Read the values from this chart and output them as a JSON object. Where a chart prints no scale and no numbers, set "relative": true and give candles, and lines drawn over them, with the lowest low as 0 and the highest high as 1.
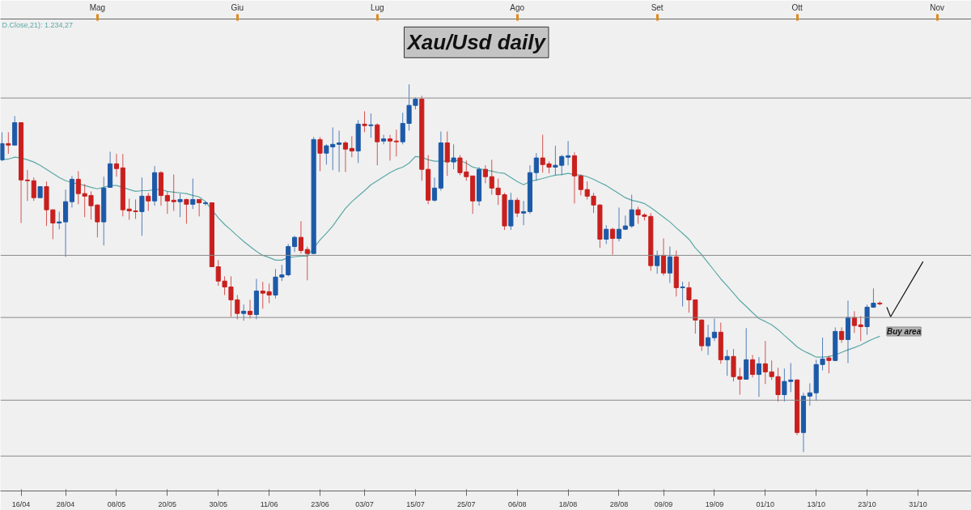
{
  "chart_data": {
    "type": "candlestick",
    "title": "Xau/Usd daily",
    "relative": true,
    "categories": [
      null,
      null,
      null,
      "16/04",
      null,
      null,
      null,
      null,
      null,
      null,
      "28/04",
      null,
      null,
      null,
      null,
      null,
      null,
      null,
      "08/05",
      null,
      null,
      null,
      null,
      null,
      null,
      null,
      "20/05",
      null,
      null,
      null,
      null,
      null,
      null,
      null,
      "30/05",
      null,
      null,
      null,
      null,
      null,
      null,
      null,
      "11/06",
      null,
      null,
      null,
      null,
      null,
      null,
      null,
      "23/06",
      null,
      null,
      null,
      null,
      null,
      null,
      "03/07",
      null,
      null,
      null,
      null,
      null,
      null,
      null,
      "15/07",
      null,
      null,
      null,
      null,
      null,
      null,
      null,
      "25/07",
      null,
      null,
      null,
      null,
      null,
      null,
      null,
      "06/08",
      null,
      null,
      null,
      null,
      null,
      null,
      null,
      "18/08",
      null,
      null,
      null,
      null,
      null,
      null,
      null,
      "28/08",
      null,
      null,
      null,
      null,
      null,
      null,
      "09/09",
      null,
      null,
      null,
      null,
      null,
      null,
      null,
      "19/09",
      null,
      null,
      null,
      null,
      null,
      null,
      null,
      "01/10",
      null,
      null,
      null,
      null,
      null,
      null,
      null,
      "13/10",
      null,
      null,
      null,
      null,
      null,
      null,
      null,
      "23/10",
      null,
      null,
      null,
      null,
      null,
      null,
      null,
      "31/10",
      null,
      null,
      null,
      null,
      null,
      null,
      null
    ],
    "ohlc": [
      [
        0.795,
        0.87,
        0.791,
        0.839
      ],
      [
        0.839,
        0.87,
        0.811,
        0.835
      ],
      [
        0.835,
        0.914,
        0.835,
        0.896
      ],
      [
        0.896,
        0.896,
        0.623,
        0.74
      ],
      [
        0.74,
        0.767,
        0.683,
        0.738
      ],
      [
        0.738,
        0.747,
        0.683,
        0.692
      ],
      [
        0.692,
        0.722,
        0.692,
        0.722
      ],
      [
        0.722,
        0.736,
        0.615,
        0.659
      ],
      [
        0.659,
        0.659,
        0.579,
        0.623
      ],
      [
        0.623,
        0.654,
        0.606,
        0.626
      ],
      [
        0.626,
        0.714,
        0.531,
        0.681
      ],
      [
        0.681,
        0.751,
        0.665,
        0.742
      ],
      [
        0.742,
        0.764,
        0.674,
        0.703
      ],
      [
        0.703,
        0.729,
        0.639,
        0.696
      ],
      [
        0.698,
        0.709,
        0.632,
        0.67
      ],
      [
        0.672,
        0.674,
        0.584,
        0.626
      ],
      [
        0.626,
        0.749,
        0.562,
        0.718
      ],
      [
        0.72,
        0.817,
        0.72,
        0.784
      ],
      [
        0.784,
        0.811,
        0.749,
        0.771
      ],
      [
        0.773,
        0.811,
        0.641,
        0.659
      ],
      [
        0.661,
        0.689,
        0.632,
        0.656
      ],
      [
        0.656,
        0.687,
        0.634,
        0.654
      ],
      [
        0.654,
        0.747,
        0.588,
        0.696
      ],
      [
        0.696,
        0.705,
        0.656,
        0.683
      ],
      [
        0.683,
        0.778,
        0.67,
        0.76
      ],
      [
        0.76,
        0.764,
        0.67,
        0.698
      ],
      [
        0.698,
        0.709,
        0.648,
        0.683
      ],
      [
        0.685,
        0.755,
        0.656,
        0.681
      ],
      [
        0.681,
        0.703,
        0.639,
        0.687
      ],
      [
        0.687,
        0.689,
        0.621,
        0.674
      ],
      [
        0.674,
        0.744,
        0.661,
        0.687
      ],
      [
        0.687,
        0.687,
        0.641,
        0.678
      ],
      [
        0.676,
        0.683,
        0.67,
        0.678
      ],
      [
        0.678,
        0.678,
        0.504,
        0.504
      ],
      [
        0.504,
        0.522,
        0.452,
        0.465
      ],
      [
        0.465,
        0.478,
        0.427,
        0.449
      ],
      [
        0.449,
        0.478,
        0.368,
        0.414
      ],
      [
        0.414,
        0.427,
        0.361,
        0.377
      ],
      [
        0.377,
        0.401,
        0.357,
        0.383
      ],
      [
        0.383,
        0.414,
        0.363,
        0.374
      ],
      [
        0.374,
        0.471,
        0.361,
        0.438
      ],
      [
        0.438,
        0.463,
        0.39,
        0.432
      ],
      [
        0.436,
        0.458,
        0.405,
        0.427
      ],
      [
        0.427,
        0.498,
        0.418,
        0.476
      ],
      [
        0.476,
        0.509,
        0.465,
        0.482
      ],
      [
        0.482,
        0.566,
        0.478,
        0.559
      ],
      [
        0.559,
        0.588,
        0.544,
        0.584
      ],
      [
        0.584,
        0.628,
        0.54,
        0.548
      ],
      [
        0.551,
        0.559,
        0.467,
        0.54
      ],
      [
        0.54,
        0.857,
        0.54,
        0.85
      ],
      [
        0.85,
        0.857,
        0.764,
        0.813
      ],
      [
        0.813,
        0.837,
        0.782,
        0.833
      ],
      [
        0.83,
        0.883,
        0.767,
        0.837
      ],
      [
        0.837,
        0.874,
        0.762,
        0.841
      ],
      [
        0.841,
        0.846,
        0.762,
        0.824
      ],
      [
        0.826,
        0.859,
        0.802,
        0.819
      ],
      [
        0.819,
        0.903,
        0.786,
        0.892
      ],
      [
        0.892,
        0.927,
        0.87,
        0.888
      ],
      [
        0.888,
        0.921,
        0.855,
        0.89
      ],
      [
        0.89,
        0.894,
        0.78,
        0.844
      ],
      [
        0.846,
        0.863,
        0.837,
        0.852
      ],
      [
        0.852,
        0.863,
        0.793,
        0.846
      ],
      [
        0.846,
        0.877,
        0.804,
        0.844
      ],
      [
        0.844,
        0.923,
        0.837,
        0.894
      ],
      [
        0.894,
        1,
        0.874,
        0.943
      ],
      [
        0.943,
        0.965,
        0.932,
        0.96
      ],
      [
        0.96,
        0.969,
        0.738,
        0.769
      ],
      [
        0.769,
        0.808,
        0.674,
        0.685
      ],
      [
        0.685,
        0.747,
        0.681,
        0.718
      ],
      [
        0.718,
        0.872,
        0.711,
        0.841
      ],
      [
        0.841,
        0.872,
        0.751,
        0.789
      ],
      [
        0.789,
        0.837,
        0.769,
        0.8
      ],
      [
        0.8,
        0.808,
        0.753,
        0.76
      ],
      [
        0.762,
        0.793,
        0.738,
        0.749
      ],
      [
        0.751,
        0.751,
        0.648,
        0.683
      ],
      [
        0.683,
        0.775,
        0.67,
        0.769
      ],
      [
        0.769,
        0.78,
        0.731,
        0.749
      ],
      [
        0.749,
        0.795,
        0.7,
        0.718
      ],
      [
        0.718,
        0.744,
        0.672,
        0.7
      ],
      [
        0.7,
        0.705,
        0.604,
        0.615
      ],
      [
        0.615,
        0.705,
        0.604,
        0.685
      ],
      [
        0.685,
        0.692,
        0.639,
        0.65
      ],
      [
        0.65,
        0.683,
        0.617,
        0.654
      ],
      [
        0.654,
        0.78,
        0.648,
        0.76
      ],
      [
        0.76,
        0.813,
        0.738,
        0.8
      ],
      [
        0.8,
        0.863,
        0.76,
        0.782
      ],
      [
        0.784,
        0.791,
        0.758,
        0.775
      ],
      [
        0.775,
        0.833,
        0.753,
        0.78
      ],
      [
        0.78,
        0.808,
        0.753,
        0.804
      ],
      [
        0.802,
        0.846,
        0.78,
        0.806
      ],
      [
        0.806,
        0.815,
        0.676,
        0.751
      ],
      [
        0.751,
        0.755,
        0.698,
        0.714
      ],
      [
        0.714,
        0.736,
        0.687,
        0.696
      ],
      [
        0.696,
        0.705,
        0.65,
        0.672
      ],
      [
        0.672,
        0.674,
        0.555,
        0.579
      ],
      [
        0.579,
        0.617,
        0.566,
        0.606
      ],
      [
        0.606,
        0.61,
        0.537,
        0.581
      ],
      [
        0.581,
        0.665,
        0.573,
        0.606
      ],
      [
        0.606,
        0.643,
        0.604,
        0.615
      ],
      [
        0.615,
        0.7,
        0.61,
        0.659
      ],
      [
        0.659,
        0.667,
        0.621,
        0.645
      ],
      [
        0.645,
        0.65,
        0.63,
        0.641
      ],
      [
        0.641,
        0.65,
        0.493,
        0.507
      ],
      [
        0.507,
        0.548,
        0.485,
        0.535
      ],
      [
        0.535,
        0.581,
        0.48,
        0.487
      ],
      [
        0.487,
        0.559,
        0.46,
        0.531
      ],
      [
        0.531,
        0.548,
        0.423,
        0.447
      ],
      [
        0.447,
        0.463,
        0.396,
        0.449
      ],
      [
        0.447,
        0.463,
        0.379,
        0.414
      ],
      [
        0.414,
        0.414,
        0.322,
        0.359
      ],
      [
        0.359,
        0.361,
        0.275,
        0.289
      ],
      [
        0.289,
        0.346,
        0.264,
        0.311
      ],
      [
        0.311,
        0.363,
        0.302,
        0.326
      ],
      [
        0.326,
        0.352,
        0.24,
        0.251
      ],
      [
        0.251,
        0.278,
        0.207,
        0.26
      ],
      [
        0.26,
        0.28,
        0.192,
        0.205
      ],
      [
        0.205,
        0.229,
        0.156,
        0.198
      ],
      [
        0.198,
        0.337,
        0.198,
        0.251
      ],
      [
        0.251,
        0.264,
        0.203,
        0.211
      ],
      [
        0.211,
        0.258,
        0.15,
        0.24
      ],
      [
        0.24,
        0.302,
        0.185,
        0.218
      ],
      [
        0.218,
        0.249,
        0.196,
        0.205
      ],
      [
        0.205,
        0.229,
        0.137,
        0.156
      ],
      [
        0.156,
        0.227,
        0.137,
        0.192
      ],
      [
        0.192,
        0.242,
        0.163,
        0.196
      ],
      [
        0.196,
        0.198,
        0.046,
        0.053
      ],
      [
        0.053,
        0.161,
        0,
        0.152
      ],
      [
        0.152,
        0.187,
        0.126,
        0.161
      ],
      [
        0.161,
        0.251,
        0.139,
        0.238
      ],
      [
        0.238,
        0.311,
        0.222,
        0.253
      ],
      [
        0.256,
        0.262,
        0.214,
        0.249
      ],
      [
        0.249,
        0.339,
        0.247,
        0.328
      ],
      [
        0.328,
        0.339,
        0.297,
        0.306
      ],
      [
        0.306,
        0.412,
        0.242,
        0.366
      ],
      [
        0.366,
        0.383,
        0.324,
        0.344
      ],
      [
        0.346,
        0.37,
        0.302,
        0.341
      ],
      [
        0.341,
        0.401,
        0.319,
        0.394
      ],
      [
        0.394,
        0.445,
        0.392,
        0.405
      ],
      [
        0.405,
        0.41,
        0.399,
        0.403
      ],
      null,
      null,
      null,
      null,
      null,
      null,
      null,
      null,
      null,
      null,
      null,
      null,
      null
    ],
    "colors": [
      "#1c5aa8",
      "#c8201e",
      "#1c5aa8",
      "#c8201e",
      "#c8201e",
      "#c8201e",
      "#1c5aa8",
      "#c8201e",
      "#c8201e",
      "#1c5aa8",
      "#1c5aa8",
      "#1c5aa8",
      "#c8201e",
      "#c8201e",
      "#c8201e",
      "#c8201e",
      "#1c5aa8",
      "#1c5aa8",
      "#c8201e",
      "#c8201e",
      "#c8201e",
      "#c8201e",
      "#1c5aa8",
      "#c8201e",
      "#1c5aa8",
      "#c8201e",
      "#c8201e",
      "#c8201e",
      "#1c5aa8",
      "#c8201e",
      "#1c5aa8",
      "#c8201e",
      "#1c5aa8",
      "#c8201e",
      "#c8201e",
      "#c8201e",
      "#c8201e",
      "#c8201e",
      "#1c5aa8",
      "#c8201e",
      "#1c5aa8",
      "#c8201e",
      "#c8201e",
      "#1c5aa8",
      "#1c5aa8",
      "#1c5aa8",
      "#1c5aa8",
      "#c8201e",
      "#c8201e",
      "#1c5aa8",
      "#c8201e",
      "#1c5aa8",
      "#1c5aa8",
      "#1c5aa8",
      "#c8201e",
      "#c8201e",
      "#1c5aa8",
      "#c8201e",
      "#1c5aa8",
      "#c8201e",
      "#1c5aa8",
      "#c8201e",
      "#c8201e",
      "#1c5aa8",
      "#1c5aa8",
      "#1c5aa8",
      "#c8201e",
      "#c8201e",
      "#1c5aa8",
      "#1c5aa8",
      "#c8201e",
      "#1c5aa8",
      "#c8201e",
      "#c8201e",
      "#c8201e",
      "#1c5aa8",
      "#c8201e",
      "#c8201e",
      "#c8201e",
      "#c8201e",
      "#1c5aa8",
      "#c8201e",
      "#1c5aa8",
      "#1c5aa8",
      "#1c5aa8",
      "#c8201e",
      "#c8201e",
      "#1c5aa8",
      "#1c5aa8",
      "#1c5aa8",
      "#c8201e",
      "#c8201e",
      "#c8201e",
      "#c8201e",
      "#c8201e",
      "#1c5aa8",
      "#c8201e",
      "#1c5aa8",
      "#1c5aa8",
      "#1c5aa8",
      "#c8201e",
      "#c8201e",
      "#c8201e",
      "#1c5aa8",
      "#c8201e",
      "#1c5aa8",
      "#c8201e",
      "#1c5aa8",
      "#c8201e",
      "#c8201e",
      "#c8201e",
      "#1c5aa8",
      "#1c5aa8",
      "#c8201e",
      "#1c5aa8",
      "#c8201e",
      "#c8201e",
      "#1c5aa8",
      "#c8201e",
      "#1c5aa8",
      "#c8201e",
      "#c8201e",
      "#c8201e",
      "#1c5aa8",
      "#1c5aa8",
      "#c8201e",
      "#1c5aa8",
      "#1c5aa8",
      "#1c5aa8",
      "#1c5aa8",
      "#c8201e",
      "#1c5aa8",
      "#c8201e",
      "#1c5aa8",
      "#c8201e",
      "#c8201e",
      "#1c5aa8",
      "#1c5aa8",
      "#c8201e",
      null,
      null,
      null,
      null,
      null,
      null,
      null,
      null,
      null,
      null,
      null,
      null,
      null
    ],
    "series": [
      {
        "type": "line",
        "name": "D.Close,21): 1.234,27",
        "color": "#5aa9a6",
        "values": [
          0.795,
          0.797,
          0.802,
          0.8,
          0.795,
          0.789,
          0.78,
          0.769,
          0.758,
          0.747,
          0.738,
          0.733,
          0.729,
          0.725,
          0.72,
          0.716,
          0.72,
          0.725,
          0.725,
          0.72,
          0.714,
          0.709,
          0.711,
          0.711,
          0.714,
          0.714,
          0.709,
          0.707,
          0.705,
          0.703,
          0.698,
          0.694,
          0.681,
          0.659,
          0.637,
          0.619,
          0.604,
          0.588,
          0.573,
          0.559,
          0.546,
          0.535,
          0.529,
          0.522,
          0.522,
          0.529,
          0.531,
          0.533,
          0.533,
          0.555,
          0.577,
          0.595,
          0.615,
          0.639,
          0.663,
          0.681,
          0.696,
          0.711,
          0.727,
          0.738,
          0.749,
          0.76,
          0.769,
          0.775,
          0.786,
          0.804,
          0.802,
          0.795,
          0.791,
          0.791,
          0.791,
          0.793,
          0.793,
          0.786,
          0.775,
          0.771,
          0.767,
          0.764,
          0.76,
          0.758,
          0.747,
          0.736,
          0.727,
          0.736,
          0.74,
          0.744,
          0.749,
          0.753,
          0.755,
          0.758,
          0.755,
          0.753,
          0.749,
          0.742,
          0.733,
          0.725,
          0.714,
          0.703,
          0.692,
          0.685,
          0.681,
          0.676,
          0.665,
          0.652,
          0.639,
          0.626,
          0.61,
          0.595,
          0.579,
          0.555,
          0.537,
          0.515,
          0.493,
          0.471,
          0.452,
          0.432,
          0.412,
          0.396,
          0.379,
          0.363,
          0.355,
          0.346,
          0.333,
          0.317,
          0.302,
          0.286,
          0.275,
          0.267,
          0.258,
          0.258,
          0.26,
          0.264,
          0.271,
          0.278,
          0.284,
          0.291,
          0.3,
          0.308,
          0.315,
          null,
          null,
          null,
          null,
          null,
          null,
          null,
          null,
          null,
          null,
          null,
          null,
          null
        ]
      }
    ],
    "annotations": [
      "Mag",
      "Giu",
      "Lug",
      "Ago",
      "Set",
      "Ott",
      "Nov",
      {
        "text": "Buy area",
        "y": 0.37
      }
    ],
    "ref_lines": [
      {
        "axis": "y",
        "value": 0.963,
        "color": "#8a8a8a"
      },
      {
        "axis": "y",
        "value": 0.535,
        "color": "#8a8a8a"
      },
      {
        "axis": "y",
        "value": 0.366,
        "color": "#8a8a8a"
      },
      {
        "axis": "y",
        "value": 0.141,
        "color": "#8a8a8a"
      },
      {
        "axis": "y",
        "value": -0.011,
        "color": "#8a8a8a"
      }
    ]
  }
}
